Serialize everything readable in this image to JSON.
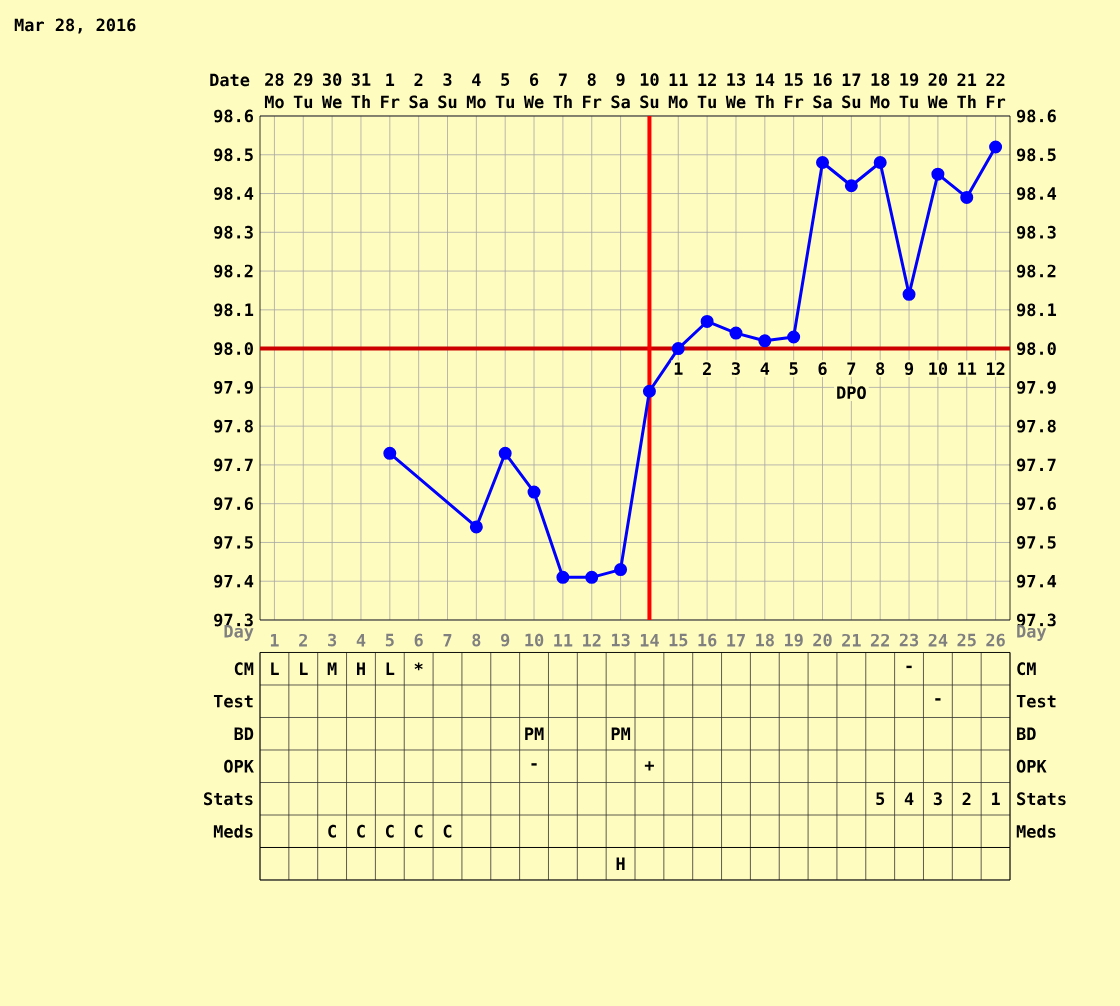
{
  "chart_data": [
    {
      "type": "line",
      "title": "Mar 28, 2016",
      "categories": [
        "28",
        "29",
        "30",
        "31",
        "1",
        "2",
        "3",
        "4",
        "5",
        "6",
        "7",
        "8",
        "9",
        "10",
        "11",
        "12",
        "13",
        "14",
        "15",
        "16",
        "17",
        "18",
        "19",
        "20",
        "21",
        "22"
      ],
      "ylim": [
        97.3,
        98.6
      ],
      "yticks": [
        {
          "value": 97.3,
          "label": "97.3"
        },
        {
          "value": 97.4,
          "label": "97.4"
        },
        {
          "value": 97.5,
          "label": "97.5"
        },
        {
          "value": 97.6,
          "label": "97.6"
        },
        {
          "value": 97.7,
          "label": "97.7"
        },
        {
          "value": 97.8,
          "label": "97.8"
        },
        {
          "value": 97.9,
          "label": "97.9"
        },
        {
          "value": 98.0,
          "label": "98.0"
        },
        {
          "value": 98.1,
          "label": "98.1"
        },
        {
          "value": 98.2,
          "label": "98.2"
        },
        {
          "value": 98.3,
          "label": "98.3"
        },
        {
          "value": 98.4,
          "label": "98.4"
        },
        {
          "value": 98.5,
          "label": "98.5"
        },
        {
          "value": 98.6,
          "label": "98.6"
        }
      ],
      "y2lim": [
        97.3,
        98.6
      ],
      "y2ticks": [
        {
          "value": 97.3,
          "label": "97.3"
        },
        {
          "value": 97.4,
          "label": "97.4"
        },
        {
          "value": 97.5,
          "label": "97.5"
        },
        {
          "value": 97.6,
          "label": "97.6"
        },
        {
          "value": 97.7,
          "label": "97.7"
        },
        {
          "value": 97.8,
          "label": "97.8"
        },
        {
          "value": 97.9,
          "label": "97.9"
        },
        {
          "value": 98.0,
          "label": "98.0"
        },
        {
          "value": 98.1,
          "label": "98.1"
        },
        {
          "value": 98.2,
          "label": "98.2"
        },
        {
          "value": 98.3,
          "label": "98.3"
        },
        {
          "value": 98.4,
          "label": "98.4"
        },
        {
          "value": 98.5,
          "label": "98.5"
        },
        {
          "value": 98.6,
          "label": "98.6"
        }
      ],
      "series": [
        {
          "color": "#0000ff",
          "values": [
            null,
            null,
            null,
            null,
            97.73,
            null,
            null,
            97.54,
            97.73,
            97.63,
            97.41,
            97.41,
            97.43,
            97.89,
            98.0,
            98.07,
            98.04,
            98.02,
            98.03,
            98.48,
            98.42,
            98.48,
            98.14,
            98.45,
            98.39,
            98.52
          ]
        }
      ],
      "marker": "circle",
      "grid": true,
      "ref_lines": [
        {
          "axis": "y",
          "value": 98.0,
          "color": "#cc0000"
        },
        {
          "axis": "x",
          "value": "10",
          "color": "#ff0000"
        }
      ],
      "annotations": [
        "Date",
        "Mo",
        "Tu",
        "We",
        "Th",
        "Fr",
        "Sa",
        "Su",
        "Mo",
        "Tu",
        "We",
        "Th",
        "Fr",
        "Sa",
        "Su",
        "Mo",
        "Tu",
        "We",
        "Th",
        "Fr",
        "Sa",
        "Su",
        "Mo",
        "Tu",
        "We",
        "Th",
        "Fr",
        "DPO",
        "1",
        "2",
        "3",
        "4",
        "5",
        "6",
        "7",
        "8",
        "9",
        "10",
        "11",
        "12"
      ]
    },
    {
      "type": "heatmap",
      "xlabel": "Day",
      "categories": [
        "1",
        "2",
        "3",
        "4",
        "5",
        "6",
        "7",
        "8",
        "9",
        "10",
        "11",
        "12",
        "13",
        "14",
        "15",
        "16",
        "17",
        "18",
        "19",
        "20",
        "21",
        "22",
        "23",
        "24",
        "25",
        "26"
      ],
      "y_categories": [
        "CM",
        "Test",
        "BD",
        "OPK",
        "Stats",
        "Meds"
      ],
      "y2_categories": [
        "CM",
        "Test",
        "BD",
        "OPK",
        "Stats",
        "Meds"
      ],
      "cells": [
        [
          null,
          null,
          null,
          null,
          null,
          null,
          null,
          null,
          null,
          null,
          null,
          null,
          null,
          null,
          null,
          null,
          null,
          null,
          null,
          null,
          null,
          null,
          null,
          null,
          null,
          null
        ],
        [
          null,
          null,
          null,
          null,
          null,
          null,
          null,
          null,
          null,
          null,
          null,
          null,
          null,
          null,
          null,
          null,
          null,
          null,
          null,
          null,
          null,
          null,
          null,
          null,
          null,
          null
        ],
        [
          null,
          null,
          null,
          null,
          null,
          null,
          null,
          null,
          null,
          null,
          null,
          null,
          null,
          null,
          null,
          null,
          null,
          null,
          null,
          null,
          null,
          null,
          null,
          null,
          null,
          null
        ],
        [
          null,
          null,
          null,
          null,
          null,
          null,
          null,
          null,
          null,
          null,
          null,
          null,
          null,
          null,
          null,
          null,
          null,
          null,
          null,
          null,
          null,
          null,
          null,
          null,
          null,
          null
        ],
        [
          null,
          null,
          null,
          null,
          null,
          null,
          null,
          null,
          null,
          null,
          null,
          null,
          null,
          null,
          null,
          null,
          null,
          null,
          null,
          null,
          null,
          null,
          null,
          null,
          null,
          null
        ],
        [
          null,
          null,
          null,
          null,
          null,
          null,
          null,
          null,
          null,
          null,
          null,
          null,
          null,
          null,
          null,
          null,
          null,
          null,
          null,
          null,
          null,
          null,
          null,
          null,
          null,
          null
        ]
      ],
      "cell_labels": [
        [
          "L",
          "L",
          "M",
          "H",
          "L",
          "*",
          null,
          null,
          null,
          null,
          null,
          null,
          null,
          null,
          null,
          null,
          null,
          null,
          null,
          null,
          null,
          null,
          "-",
          null,
          null,
          null
        ],
        [
          null,
          null,
          null,
          null,
          null,
          null,
          null,
          null,
          null,
          null,
          null,
          null,
          null,
          null,
          null,
          null,
          null,
          null,
          null,
          null,
          null,
          null,
          null,
          "-",
          null,
          null
        ],
        [
          null,
          null,
          null,
          null,
          null,
          null,
          null,
          null,
          null,
          "PM",
          null,
          null,
          "PM",
          null,
          null,
          null,
          null,
          null,
          null,
          null,
          null,
          null,
          null,
          null,
          null,
          null
        ],
        [
          null,
          null,
          null,
          null,
          null,
          null,
          null,
          null,
          null,
          "-",
          null,
          null,
          null,
          "+",
          null,
          null,
          null,
          null,
          null,
          null,
          null,
          null,
          null,
          null,
          null,
          null
        ],
        [
          null,
          null,
          null,
          null,
          null,
          null,
          null,
          null,
          null,
          null,
          null,
          null,
          null,
          null,
          null,
          null,
          null,
          null,
          null,
          null,
          null,
          "5",
          "4",
          "3",
          "2",
          "1"
        ],
        [
          null,
          null,
          "C",
          "C",
          "C",
          "C",
          "C",
          null,
          null,
          null,
          null,
          null,
          null,
          null,
          null,
          null,
          null,
          null,
          null,
          null,
          null,
          null,
          null,
          null,
          null,
          null
        ]
      ]
    },
    {
      "type": "other",
      "categories": [
        null,
        null,
        null,
        null,
        null,
        null,
        null,
        null,
        null,
        null,
        null,
        null,
        null,
        null,
        null,
        null,
        null,
        null,
        null,
        null,
        null,
        null,
        null,
        null,
        null,
        null
      ],
      "y_categories": [
        null
      ],
      "cells": [
        [
          null,
          null,
          null,
          null,
          null,
          null,
          null,
          null,
          null,
          null,
          null,
          null,
          null,
          null,
          null,
          null,
          null,
          null,
          null,
          null,
          null,
          null,
          null,
          null,
          null,
          null
        ]
      ],
      "cell_labels": [
        [
          null,
          null,
          null,
          null,
          null,
          null,
          null,
          null,
          null,
          null,
          null,
          null,
          "H",
          null,
          null,
          null,
          null,
          null,
          null,
          null,
          null,
          null,
          null,
          null,
          null,
          null
        ]
      ]
    }
  ]
}
